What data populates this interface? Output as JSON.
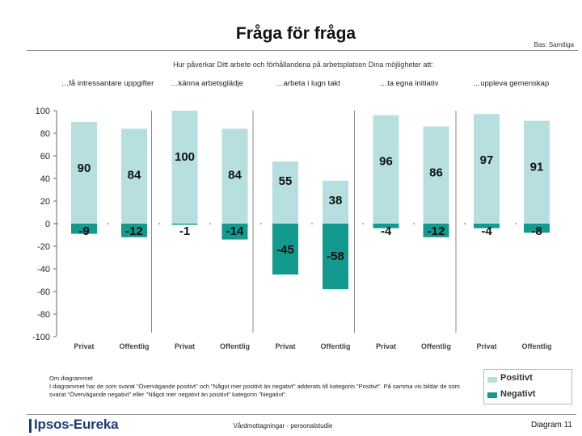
{
  "header": {
    "title": "Fråga för fråga",
    "bas": "Bas: Samtliga",
    "subtitle": "Hur påverkar Ditt arbete och förhållandena på arbetsplatsen Dina möjligheter att:"
  },
  "chart_data": {
    "type": "bar",
    "groups": [
      "…få intressantare uppgifter",
      "…känna arbetsglädje",
      "…arbeta i lugn takt",
      "…ta egna initiativ",
      "…uppleva gemenskap"
    ],
    "categories": [
      "Privat",
      "Offentlig",
      "Privat",
      "Offentlig",
      "Privat",
      "Offentlig",
      "Privat",
      "Offentlig",
      "Privat",
      "Offentlig"
    ],
    "series": [
      {
        "name": "Positivt",
        "color": "#b7dfe0",
        "values": [
          90,
          84,
          100,
          84,
          55,
          38,
          96,
          86,
          97,
          91
        ]
      },
      {
        "name": "Negativt",
        "color": "#13998d",
        "values": [
          -9,
          -12,
          -1,
          -14,
          -45,
          -58,
          -4,
          -12,
          -4,
          -8
        ]
      }
    ],
    "ylim": [
      -100,
      100
    ],
    "yticks": [
      100,
      80,
      60,
      40,
      20,
      0,
      -20,
      -40,
      -60,
      -80,
      -100
    ],
    "xlabel": "",
    "ylabel": "",
    "legend": "bottom-right"
  },
  "note": {
    "title": "Om diagrammet",
    "text": "I diagrammet har de som svarat \"Övervägande positivt\" och \"Något mer positivt än negativt\" adderats till kategorin \"Positivt\". På samma vis bildar de som svarat \"Övervägande negativt\" eller \"Något mer negativt än positivt\" kategorin \"Negativt\"."
  },
  "legend": {
    "positive": "Positivt",
    "negative": "Negativt"
  },
  "footer": {
    "logo": "Ipsos-Eureka",
    "center": "Vårdmottagningar - personalstudie",
    "page": "Diagram 11"
  }
}
